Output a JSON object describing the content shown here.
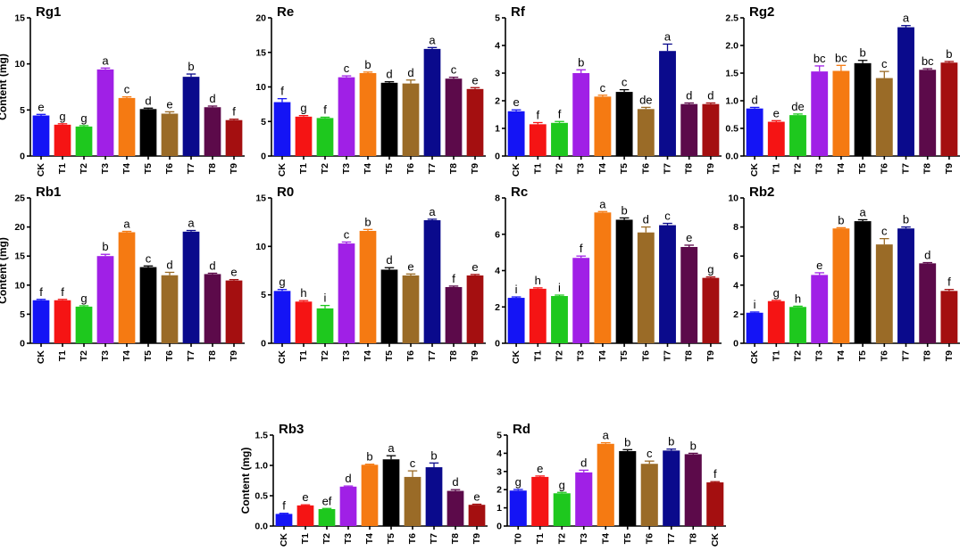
{
  "colors": [
    "#1414f5",
    "#f51414",
    "#1ec81e",
    "#a020e6",
    "#f57a12",
    "#000000",
    "#9a6b27",
    "#0a0a8c",
    "#5c0a4a",
    "#a40f10"
  ],
  "chart_data": [
    {
      "type": "bar",
      "title": "Rg1",
      "ylabel": "Content (mg)",
      "ylim": [
        0,
        15
      ],
      "yticks": [
        0,
        5,
        10,
        15
      ],
      "categories": [
        "CK",
        "T1",
        "T2",
        "T3",
        "T4",
        "T5",
        "T6",
        "T7",
        "T8",
        "T9"
      ],
      "values": [
        4.4,
        3.4,
        3.2,
        9.4,
        6.3,
        5.1,
        4.6,
        8.6,
        5.3,
        3.9
      ],
      "errors": [
        0.12,
        0.1,
        0.1,
        0.15,
        0.12,
        0.1,
        0.2,
        0.3,
        0.12,
        0.1
      ],
      "labels": [
        "e",
        "g",
        "g",
        "a",
        "c",
        "d",
        "e",
        "b",
        "d",
        "f"
      ]
    },
    {
      "type": "bar",
      "title": "Re",
      "ylabel": "",
      "ylim": [
        0,
        20
      ],
      "yticks": [
        0,
        5,
        10,
        15,
        20
      ],
      "categories": [
        "CK",
        "T1",
        "T2",
        "T3",
        "T4",
        "T5",
        "T6",
        "T7",
        "T8",
        "T9"
      ],
      "values": [
        7.8,
        5.7,
        5.5,
        11.4,
        12.0,
        10.6,
        10.5,
        15.5,
        11.2,
        9.7
      ],
      "errors": [
        0.5,
        0.15,
        0.12,
        0.2,
        0.15,
        0.15,
        0.5,
        0.2,
        0.2,
        0.2
      ],
      "labels": [
        "f",
        "g",
        "f",
        "c",
        "b",
        "d",
        "d",
        "a",
        "c",
        "e"
      ]
    },
    {
      "type": "bar",
      "title": "Rf",
      "ylabel": "",
      "ylim": [
        0,
        5
      ],
      "yticks": [
        0,
        1,
        2,
        3,
        4,
        5
      ],
      "categories": [
        "CK",
        "T1",
        "T2",
        "T3",
        "T4",
        "T5",
        "T6",
        "T7",
        "T8",
        "T9"
      ],
      "values": [
        1.62,
        1.15,
        1.2,
        3.0,
        2.15,
        2.32,
        1.7,
        3.8,
        1.88,
        1.88
      ],
      "errors": [
        0.05,
        0.06,
        0.05,
        0.12,
        0.05,
        0.08,
        0.06,
        0.25,
        0.04,
        0.04
      ],
      "labels": [
        "e",
        "f",
        "f",
        "b",
        "c",
        "c",
        "de",
        "a",
        "d",
        "d"
      ]
    },
    {
      "type": "bar",
      "title": "Rg2",
      "ylabel": "",
      "ylim": [
        0,
        2.5
      ],
      "yticks": [
        0.0,
        0.5,
        1.0,
        1.5,
        2.0,
        2.5
      ],
      "categories": [
        "CK",
        "T1",
        "T2",
        "T3",
        "T4",
        "T5",
        "T6",
        "T7",
        "T8",
        "T9"
      ],
      "values": [
        0.86,
        0.62,
        0.74,
        1.53,
        1.54,
        1.68,
        1.41,
        2.33,
        1.56,
        1.69
      ],
      "errors": [
        0.02,
        0.02,
        0.02,
        0.1,
        0.1,
        0.05,
        0.12,
        0.03,
        0.02,
        0.02
      ],
      "labels": [
        "d",
        "e",
        "de",
        "bc",
        "bc",
        "b",
        "c",
        "a",
        "bc",
        "b"
      ]
    },
    {
      "type": "bar",
      "title": "Rb1",
      "ylabel": "Content (mg)",
      "ylim": [
        0,
        25
      ],
      "yticks": [
        0,
        5,
        10,
        15,
        20,
        25
      ],
      "categories": [
        "CK",
        "T1",
        "T2",
        "T3",
        "T4",
        "T5",
        "T6",
        "T7",
        "T8",
        "T9"
      ],
      "values": [
        7.4,
        7.4,
        6.3,
        15.0,
        19.1,
        13.1,
        11.7,
        19.2,
        11.9,
        10.8
      ],
      "errors": [
        0.15,
        0.15,
        0.15,
        0.3,
        0.15,
        0.2,
        0.5,
        0.2,
        0.15,
        0.15
      ],
      "labels": [
        "f",
        "f",
        "g",
        "b",
        "a",
        "c",
        "d",
        "a",
        "d",
        "e"
      ]
    },
    {
      "type": "bar",
      "title": "R0",
      "ylabel": "",
      "ylim": [
        0,
        15
      ],
      "yticks": [
        0,
        5,
        10,
        15
      ],
      "categories": [
        "CK",
        "T1",
        "T2",
        "T3",
        "T4",
        "T5",
        "T6",
        "T7",
        "T8",
        "T9"
      ],
      "values": [
        5.4,
        4.3,
        3.6,
        10.3,
        11.6,
        7.6,
        7.0,
        12.7,
        5.8,
        7.0
      ],
      "errors": [
        0.15,
        0.1,
        0.3,
        0.15,
        0.15,
        0.2,
        0.15,
        0.1,
        0.1,
        0.1
      ],
      "labels": [
        "g",
        "h",
        "i",
        "c",
        "b",
        "d",
        "e",
        "a",
        "f",
        "e"
      ]
    },
    {
      "type": "bar",
      "title": "Rc",
      "ylabel": "",
      "ylim": [
        0,
        8
      ],
      "yticks": [
        0,
        2,
        4,
        6,
        8
      ],
      "categories": [
        "CK",
        "T1",
        "T2",
        "T3",
        "T4",
        "T5",
        "T6",
        "T7",
        "T8",
        "T9"
      ],
      "values": [
        2.5,
        3.0,
        2.6,
        4.7,
        7.2,
        6.8,
        6.1,
        6.5,
        5.3,
        3.6
      ],
      "errors": [
        0.05,
        0.05,
        0.05,
        0.1,
        0.05,
        0.1,
        0.3,
        0.1,
        0.1,
        0.05
      ],
      "labels": [
        "i",
        "h",
        "i",
        "f",
        "a",
        "b",
        "d",
        "c",
        "e",
        "g"
      ]
    },
    {
      "type": "bar",
      "title": "Rb2",
      "ylabel": "",
      "ylim": [
        0,
        10
      ],
      "yticks": [
        0,
        2,
        4,
        6,
        8,
        10
      ],
      "categories": [
        "CK",
        "T1",
        "T2",
        "T3",
        "T4",
        "T5",
        "T6",
        "T7",
        "T8",
        "T9"
      ],
      "values": [
        2.1,
        2.9,
        2.5,
        4.7,
        7.9,
        8.4,
        6.8,
        7.9,
        5.5,
        3.6
      ],
      "errors": [
        0.05,
        0.05,
        0.05,
        0.15,
        0.05,
        0.1,
        0.4,
        0.1,
        0.05,
        0.1
      ],
      "labels": [
        "i",
        "g",
        "h",
        "e",
        "b",
        "a",
        "c",
        "b",
        "d",
        "f"
      ]
    },
    {
      "type": "bar",
      "title": "Rb3",
      "ylabel": "Content (mg)",
      "ylim": [
        0,
        1.5
      ],
      "yticks": [
        0.0,
        0.5,
        1.0,
        1.5
      ],
      "categories": [
        "CK",
        "T1",
        "T2",
        "T3",
        "T4",
        "T5",
        "T6",
        "T7",
        "T8",
        "T9"
      ],
      "values": [
        0.2,
        0.34,
        0.28,
        0.65,
        1.01,
        1.1,
        0.81,
        0.97,
        0.58,
        0.35
      ],
      "errors": [
        0.01,
        0.01,
        0.01,
        0.01,
        0.01,
        0.06,
        0.1,
        0.07,
        0.02,
        0.01
      ],
      "labels": [
        "f",
        "e",
        "ef",
        "d",
        "b",
        "a",
        "c",
        "b",
        "d",
        "e"
      ]
    },
    {
      "type": "bar",
      "title": "Rd",
      "ylabel": "",
      "ylim": [
        0,
        5
      ],
      "yticks": [
        0,
        1,
        2,
        3,
        4,
        5
      ],
      "categories": [
        "T0",
        "T1",
        "T2",
        "T3",
        "T4",
        "T5",
        "T6",
        "T7",
        "T8",
        "CK"
      ],
      "values": [
        1.95,
        2.7,
        1.8,
        2.95,
        4.52,
        4.12,
        3.42,
        4.15,
        3.95,
        2.4
      ],
      "errors": [
        0.06,
        0.05,
        0.05,
        0.12,
        0.06,
        0.08,
        0.15,
        0.08,
        0.05,
        0.04
      ],
      "labels": [
        "g",
        "e",
        "g",
        "d",
        "a",
        "b",
        "c",
        "b",
        "b",
        "f"
      ]
    }
  ]
}
